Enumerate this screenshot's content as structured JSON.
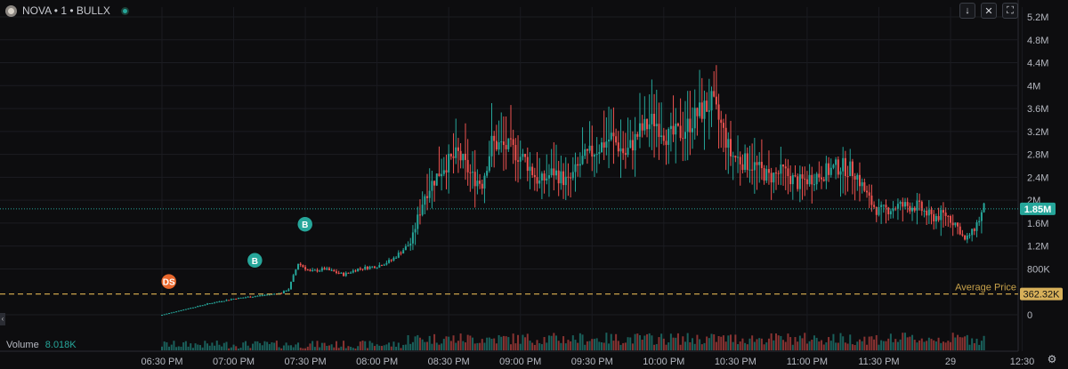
{
  "header": {
    "symbol": "NOVA",
    "interval": "1",
    "exchange": "BULLX",
    "title": "NOVA • 1 • BULLX"
  },
  "toolbar": {
    "download_icon": "download-arrow-icon",
    "collapse_icon": "collapse-icon",
    "fullscreen_icon": "fullscreen-icon",
    "download_glyph": "↓",
    "collapse_glyph": "✕",
    "fullscreen_glyph": "⛶"
  },
  "volume": {
    "label": "Volume",
    "value": "8.018K"
  },
  "colors": {
    "up": "#26a69a",
    "down": "#ef5350",
    "avg_line": "#c8a24a",
    "last_price_bg": "#26a69a",
    "avg_label_bg": "#d7b05a",
    "marker_buy": "#26a69a",
    "marker_sell": "#e8672c"
  },
  "settings_icon": "gear-icon",
  "chart_data": {
    "type": "candlestick",
    "title": "NOVA • 1 • BULLX",
    "y_axis": {
      "ticks": [
        "5.2M",
        "4.8M",
        "4.4M",
        "4M",
        "3.6M",
        "3.2M",
        "2.8M",
        "2.4M",
        "2M",
        "1.6M",
        "1.2M",
        "800K",
        "0"
      ],
      "tick_values": [
        5200000,
        4800000,
        4400000,
        4000000,
        3600000,
        3200000,
        2800000,
        2400000,
        2000000,
        1600000,
        1200000,
        800000,
        0
      ],
      "range": [
        -300000,
        5400000
      ]
    },
    "x_axis": {
      "ticks": [
        "06:30 PM",
        "07:00 PM",
        "07:30 PM",
        "08:00 PM",
        "08:30 PM",
        "09:00 PM",
        "09:30 PM",
        "10:00 PM",
        "10:30 PM",
        "11:00 PM",
        "11:30 PM",
        "29",
        "12:30"
      ],
      "tick_minutes": [
        0,
        30,
        60,
        90,
        120,
        150,
        180,
        210,
        240,
        270,
        300,
        330,
        360
      ]
    },
    "last_price": {
      "value": 1850000,
      "label": "1.85M"
    },
    "average_price": {
      "value": 362320,
      "label": "362.32K",
      "text": "Average Price"
    },
    "markers": [
      {
        "label": "DS",
        "minute": 1,
        "value": 580000,
        "kind": "sell"
      },
      {
        "label": "B",
        "minute": 37,
        "value": 950000,
        "kind": "buy"
      },
      {
        "label": "B",
        "minute": 58,
        "value": 1580000,
        "kind": "buy"
      }
    ],
    "price_path": [
      [
        0,
        0
      ],
      [
        10,
        100000
      ],
      [
        20,
        200000
      ],
      [
        30,
        280000
      ],
      [
        40,
        330000
      ],
      [
        50,
        380000
      ],
      [
        53,
        450000
      ],
      [
        57,
        900000
      ],
      [
        62,
        750000
      ],
      [
        68,
        800000
      ],
      [
        76,
        700000
      ],
      [
        82,
        800000
      ],
      [
        90,
        850000
      ],
      [
        96,
        950000
      ],
      [
        104,
        1250000
      ],
      [
        110,
        2100000
      ],
      [
        113,
        2300000
      ],
      [
        118,
        2600000
      ],
      [
        124,
        2800000
      ],
      [
        130,
        2400000
      ],
      [
        134,
        2300000
      ],
      [
        138,
        3000000
      ],
      [
        146,
        2900000
      ],
      [
        152,
        2700000
      ],
      [
        158,
        2300000
      ],
      [
        164,
        2500000
      ],
      [
        170,
        2300000
      ],
      [
        176,
        2700000
      ],
      [
        182,
        2900000
      ],
      [
        188,
        3100000
      ],
      [
        194,
        2800000
      ],
      [
        200,
        3200000
      ],
      [
        206,
        3400000
      ],
      [
        212,
        3100000
      ],
      [
        218,
        3200000
      ],
      [
        224,
        3500000
      ],
      [
        230,
        3700000
      ],
      [
        234,
        3300000
      ],
      [
        238,
        2800000
      ],
      [
        242,
        2700000
      ],
      [
        248,
        2600000
      ],
      [
        254,
        2400000
      ],
      [
        260,
        2500000
      ],
      [
        266,
        2300000
      ],
      [
        272,
        2400000
      ],
      [
        278,
        2500000
      ],
      [
        284,
        2600000
      ],
      [
        290,
        2500000
      ],
      [
        296,
        2000000
      ],
      [
        300,
        1800000
      ],
      [
        308,
        1900000
      ],
      [
        316,
        1900000
      ],
      [
        322,
        1700000
      ],
      [
        328,
        1750000
      ],
      [
        332,
        1600000
      ],
      [
        336,
        1300000
      ],
      [
        340,
        1500000
      ],
      [
        344,
        1850000
      ]
    ],
    "volume_unit": "K"
  }
}
